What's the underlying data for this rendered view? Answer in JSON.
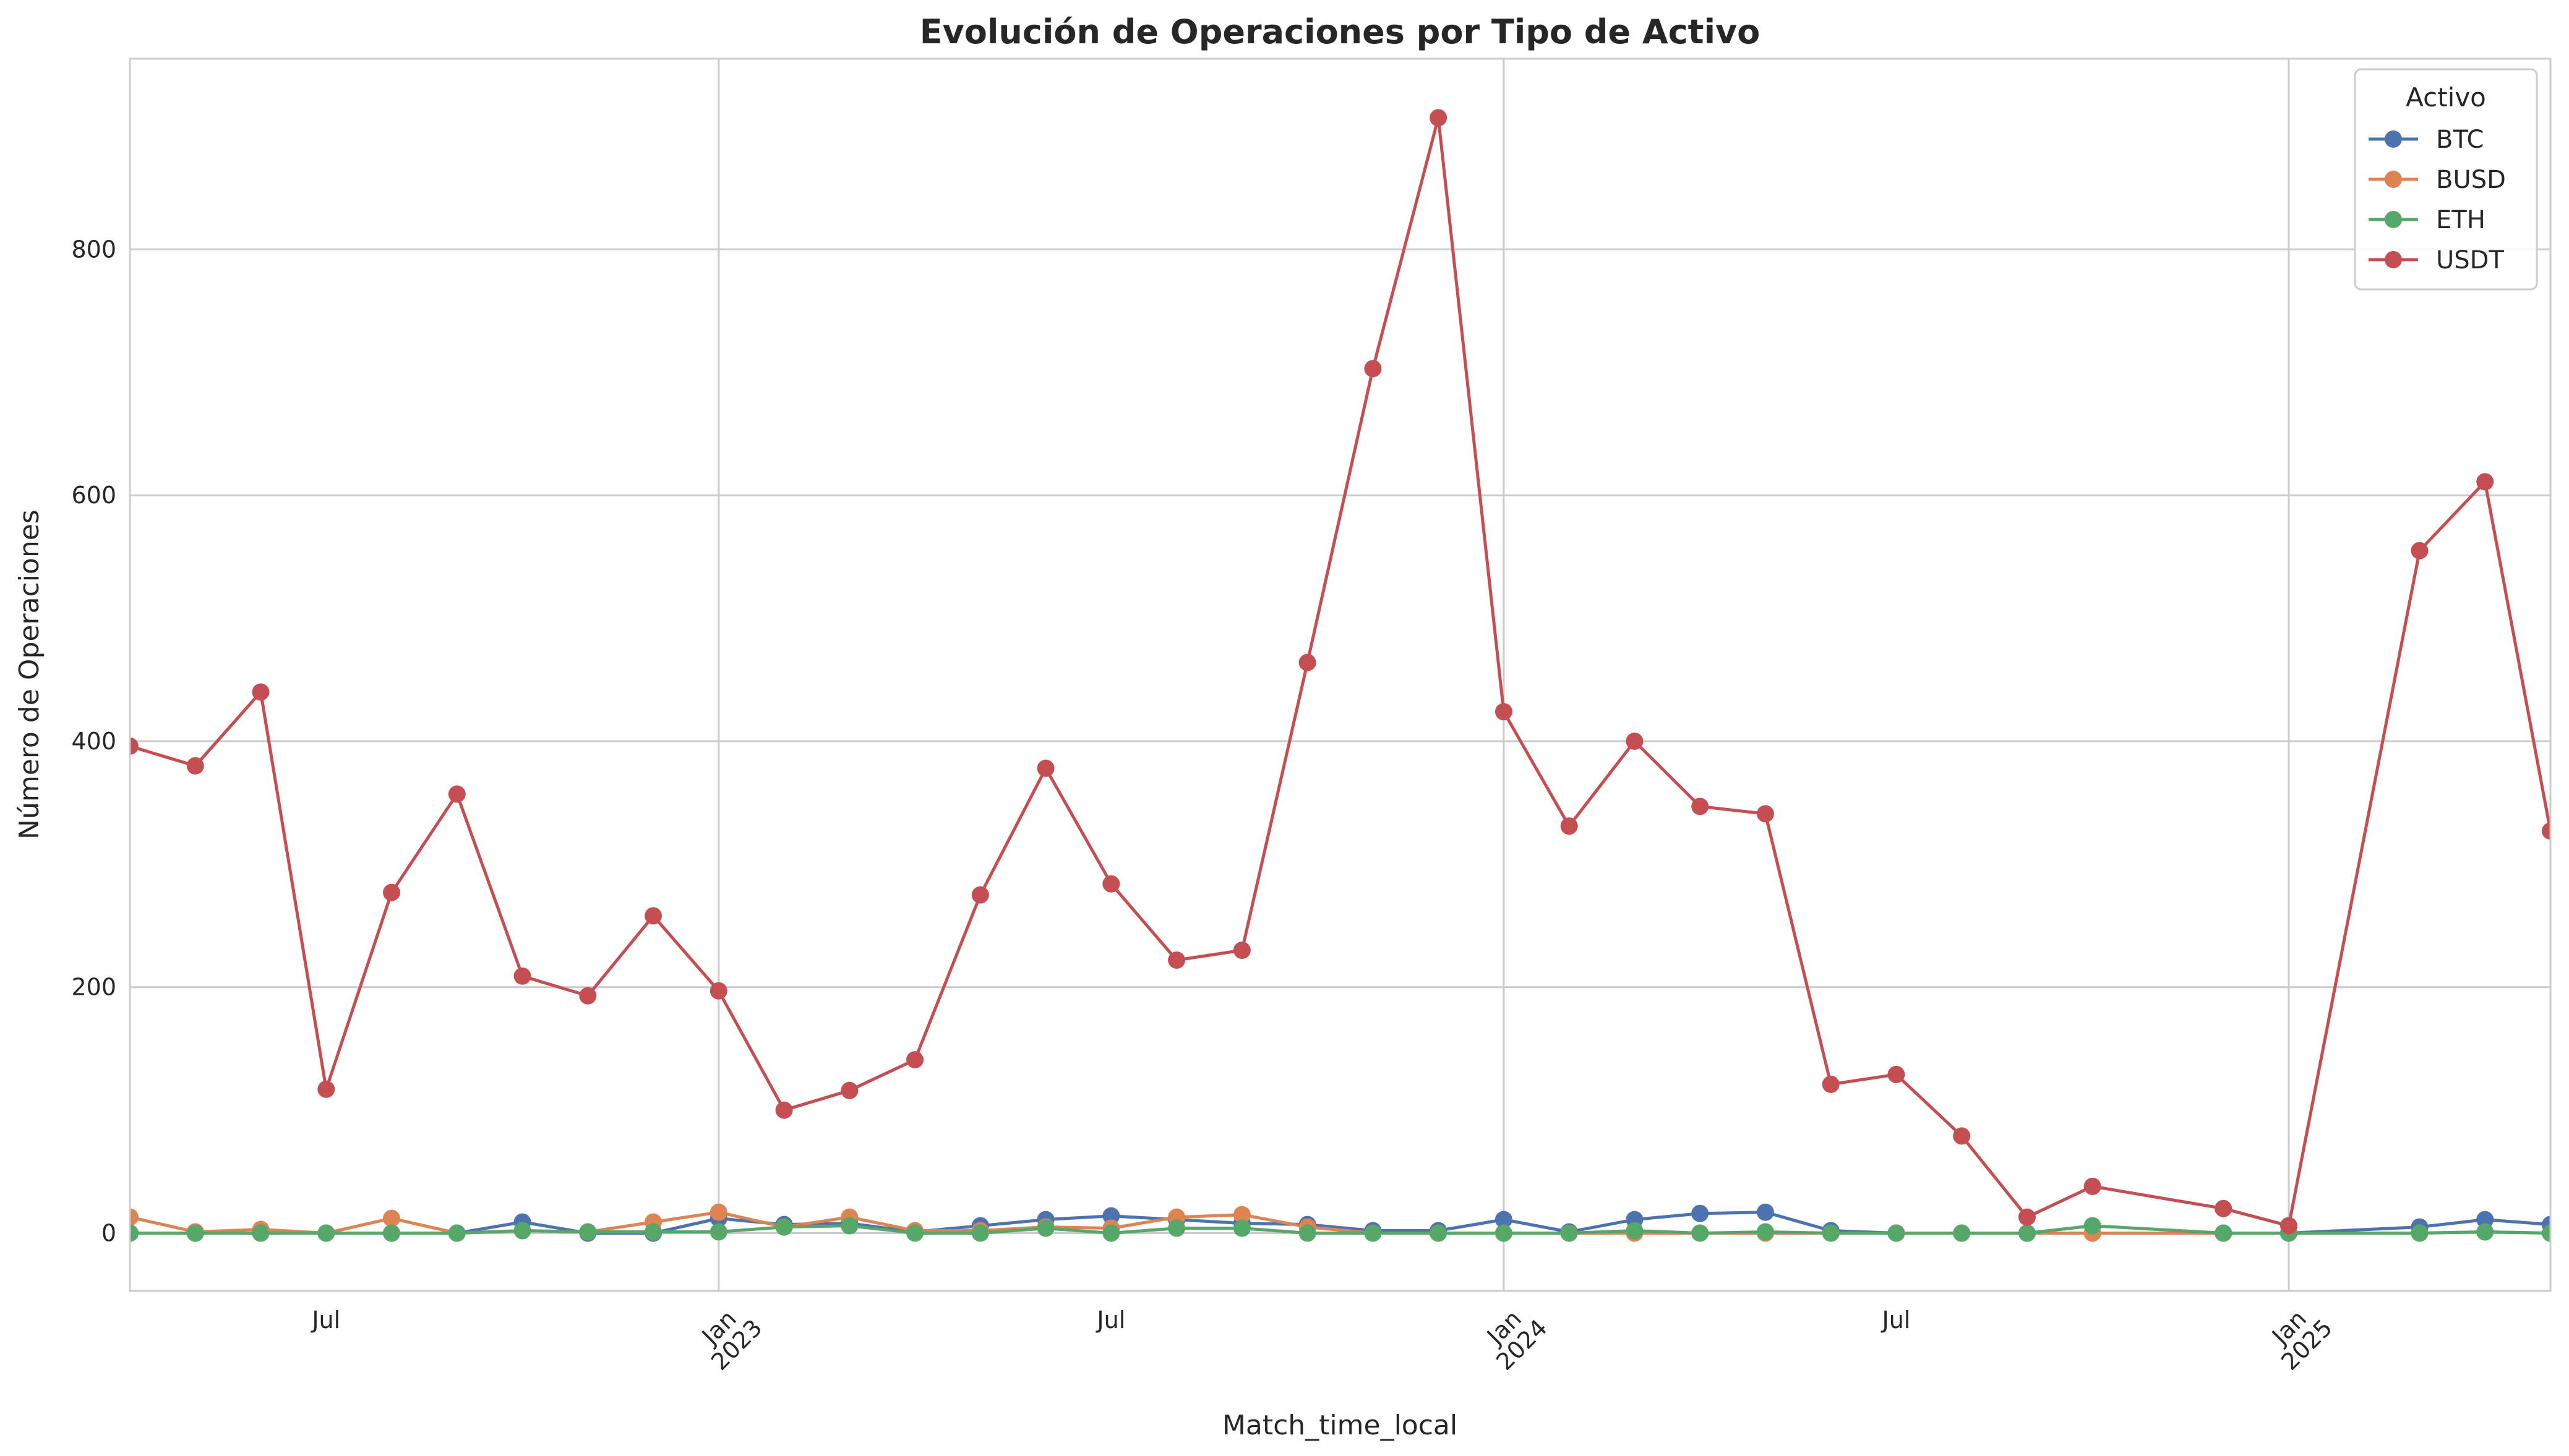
{
  "chart_data": {
    "type": "line",
    "title": "Evolución de Operaciones por Tipo de Activo",
    "xlabel": "Match_time_local",
    "ylabel": "Número de Operaciones",
    "ylim": [
      -47,
      955
    ],
    "yticks": [
      0,
      200,
      400,
      600,
      800
    ],
    "xlim_month_index": [
      0,
      37
    ],
    "xticks": [
      {
        "index": 3,
        "lines": [
          "Jul"
        ],
        "rotated": false
      },
      {
        "index": 9,
        "lines": [
          "Jan",
          "2023"
        ],
        "rotated": true
      },
      {
        "index": 15,
        "lines": [
          "Jul"
        ],
        "rotated": false
      },
      {
        "index": 21,
        "lines": [
          "Jan",
          "2024"
        ],
        "rotated": true
      },
      {
        "index": 27,
        "lines": [
          "Jul"
        ],
        "rotated": false
      },
      {
        "index": 33,
        "lines": [
          "Jan",
          "2025"
        ],
        "rotated": true
      }
    ],
    "legend": {
      "title": "Activo",
      "position": "top-right"
    },
    "grid": true,
    "series": [
      {
        "name": "BTC",
        "color": "#4c72b0",
        "points": [
          [
            0,
            0
          ],
          [
            1,
            0
          ],
          [
            2,
            0
          ],
          [
            3,
            0
          ],
          [
            4,
            0
          ],
          [
            5,
            0
          ],
          [
            6,
            9
          ],
          [
            7,
            0
          ],
          [
            8,
            0
          ],
          [
            9,
            12
          ],
          [
            10,
            7
          ],
          [
            11,
            8
          ],
          [
            12,
            1
          ],
          [
            13,
            6
          ],
          [
            14,
            11
          ],
          [
            15,
            14
          ],
          [
            16,
            11
          ],
          [
            17,
            8
          ],
          [
            18,
            7
          ],
          [
            19,
            2
          ],
          [
            20,
            2
          ],
          [
            21,
            11
          ],
          [
            22,
            1
          ],
          [
            23,
            11
          ],
          [
            24,
            16
          ],
          [
            25,
            17
          ],
          [
            26,
            2
          ],
          [
            27,
            0
          ],
          [
            28,
            0
          ],
          [
            29,
            0
          ],
          [
            30,
            0
          ],
          [
            32,
            0
          ],
          [
            33,
            0
          ],
          [
            35,
            5
          ],
          [
            36,
            11
          ],
          [
            37,
            7
          ]
        ]
      },
      {
        "name": "BUSD",
        "color": "#dd8452",
        "points": [
          [
            0,
            13
          ],
          [
            1,
            1
          ],
          [
            2,
            3
          ],
          [
            3,
            0
          ],
          [
            4,
            12
          ],
          [
            5,
            0
          ],
          [
            6,
            2
          ],
          [
            7,
            1
          ],
          [
            8,
            9
          ],
          [
            9,
            17
          ],
          [
            10,
            5
          ],
          [
            11,
            13
          ],
          [
            12,
            2
          ],
          [
            13,
            2
          ],
          [
            14,
            5
          ],
          [
            15,
            4
          ],
          [
            16,
            13
          ],
          [
            17,
            15
          ],
          [
            18,
            5
          ],
          [
            19,
            0
          ],
          [
            20,
            0
          ],
          [
            21,
            0
          ],
          [
            22,
            0
          ],
          [
            23,
            0
          ],
          [
            24,
            0
          ],
          [
            25,
            0
          ],
          [
            26,
            0
          ],
          [
            27,
            0
          ],
          [
            28,
            0
          ],
          [
            29,
            0
          ],
          [
            30,
            0
          ],
          [
            32,
            0
          ],
          [
            33,
            0
          ],
          [
            35,
            0
          ],
          [
            36,
            1
          ],
          [
            37,
            0
          ]
        ]
      },
      {
        "name": "ETH",
        "color": "#55a868",
        "points": [
          [
            0,
            0
          ],
          [
            1,
            0
          ],
          [
            2,
            0
          ],
          [
            3,
            0
          ],
          [
            4,
            0
          ],
          [
            5,
            0
          ],
          [
            6,
            2
          ],
          [
            7,
            1
          ],
          [
            8,
            1
          ],
          [
            9,
            1
          ],
          [
            10,
            5
          ],
          [
            11,
            6
          ],
          [
            12,
            0
          ],
          [
            13,
            0
          ],
          [
            14,
            4
          ],
          [
            15,
            0
          ],
          [
            16,
            4
          ],
          [
            17,
            4
          ],
          [
            18,
            0
          ],
          [
            19,
            0
          ],
          [
            20,
            0
          ],
          [
            21,
            0
          ],
          [
            22,
            0
          ],
          [
            23,
            2
          ],
          [
            24,
            0
          ],
          [
            25,
            1
          ],
          [
            26,
            0
          ],
          [
            27,
            0
          ],
          [
            28,
            0
          ],
          [
            29,
            0
          ],
          [
            30,
            6
          ],
          [
            32,
            0
          ],
          [
            33,
            0
          ],
          [
            35,
            0
          ],
          [
            36,
            1
          ],
          [
            37,
            0
          ]
        ]
      },
      {
        "name": "USDT",
        "color": "#c44e52",
        "points": [
          [
            0,
            396
          ],
          [
            1,
            380
          ],
          [
            2,
            440
          ],
          [
            3,
            117
          ],
          [
            4,
            277
          ],
          [
            5,
            357
          ],
          [
            6,
            209
          ],
          [
            7,
            193
          ],
          [
            8,
            258
          ],
          [
            9,
            197
          ],
          [
            10,
            100
          ],
          [
            11,
            116
          ],
          [
            12,
            141
          ],
          [
            13,
            275
          ],
          [
            14,
            378
          ],
          [
            15,
            284
          ],
          [
            16,
            222
          ],
          [
            17,
            230
          ],
          [
            18,
            464
          ],
          [
            19,
            703
          ],
          [
            20,
            907
          ],
          [
            21,
            424
          ],
          [
            22,
            331
          ],
          [
            23,
            400
          ],
          [
            24,
            347
          ],
          [
            25,
            341
          ],
          [
            26,
            121
          ],
          [
            27,
            129
          ],
          [
            28,
            79
          ],
          [
            29,
            13
          ],
          [
            30,
            38
          ],
          [
            32,
            20
          ],
          [
            33,
            6
          ],
          [
            35,
            555
          ],
          [
            36,
            611
          ],
          [
            37,
            327
          ]
        ]
      }
    ]
  }
}
